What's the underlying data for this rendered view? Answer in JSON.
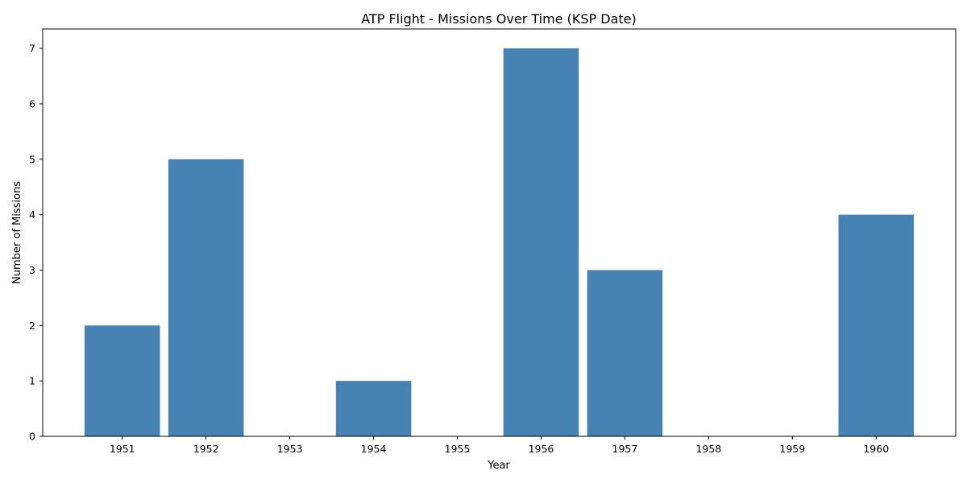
{
  "colors": {
    "bar": "#4682b4",
    "axis": "#000000",
    "background": "#ffffff"
  },
  "chart_data": {
    "type": "bar",
    "title": "ATP Flight - Missions Over Time (KSP Date)",
    "xlabel": "Year",
    "ylabel": "Number of Missions",
    "categories": [
      "1951",
      "1952",
      "1953",
      "1954",
      "1955",
      "1956",
      "1957",
      "1958",
      "1959",
      "1960"
    ],
    "values": [
      2,
      5,
      0,
      1,
      0,
      7,
      3,
      0,
      0,
      4
    ],
    "ylim": [
      0,
      7.35
    ],
    "yticks": [
      "0",
      "1",
      "2",
      "3",
      "4",
      "5",
      "6",
      "7"
    ],
    "grid": false,
    "legend": "none"
  }
}
